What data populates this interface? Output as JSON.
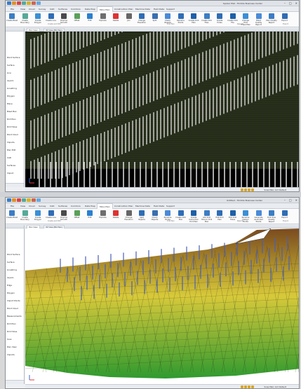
{
  "windows": [
    {
      "title": "Spoiler Plat - Trimble Business Center",
      "ribbon_tabs": [
        "File",
        "View",
        "Cloud",
        "Survey",
        "CAD",
        "Surfaces",
        "Corridors",
        "Data Prep",
        "Mine Plan",
        "Construction Plan",
        "Machine Data",
        "Field Data",
        "Support"
      ],
      "active_tab": "Mine Plan",
      "ribbon_buttons": [
        "Create Blast",
        "Create Boundary",
        "Create Polygon",
        "Create Line",
        "Polyline Smooth",
        "Offset",
        "Edit",
        "Explode",
        "Delete",
        "Join",
        "Change Elevation",
        "Split",
        "Check Objects",
        "Rename Points",
        "Create Drill Plan",
        "Create Drill Files",
        "Create Holes",
        "Create Drill File",
        "Change Hole Properties",
        "Blast Quality Report",
        "Plan Quality Report",
        "Export"
      ],
      "ribbon_groups": [
        "Create and Edit",
        "Drill Plan",
        "Reports",
        "Export"
      ],
      "sidebar_items": [
        "Point Surface",
        "Surface",
        "Line",
        "Layers",
        "Linestring",
        "Polygon",
        "Plane",
        "Blast Plan",
        "Drill Plan",
        "Drill Holes",
        "Point Cloud",
        "Imports",
        "Plan Edit",
        "CAD",
        "Surfaces",
        "Import"
      ],
      "doc_tabs": [
        "Plan View",
        "3D View (Blk Plan)"
      ],
      "status_text": "Snap  Main  Grd  Default"
    },
    {
      "title": "Untitled - Trimble Business Center",
      "ribbon_tabs": [
        "File",
        "View",
        "Cloud",
        "Survey",
        "CAD",
        "Surfaces",
        "Corridors",
        "Data Prep",
        "Mine Plan",
        "Construction Plan",
        "Machine Data",
        "Field Data",
        "Support"
      ],
      "active_tab": "Mine Plan",
      "ribbon_buttons": [
        "Create Blast",
        "Create Boundary",
        "Create Polygon",
        "Create Line",
        "Polyline Smooth",
        "Offset",
        "Edit",
        "Explode",
        "Delete",
        "Change Elevation",
        "Split Objects",
        "Check Objects",
        "Rename Points",
        "Create Drill Plan",
        "Create Instruction Drill Plan",
        "Add Drill Hole to Drill Plan",
        "Edit Drill Plan",
        "Edit Drill Holes",
        "Rename Design Points",
        "Generate As-Drilled Points",
        "Drill Hole Quality Report",
        "Export"
      ],
      "ribbon_groups": [
        "Create and Edit",
        "Drill Plan",
        "Reports",
        "Export"
      ],
      "sidebar_items": [
        "Point Surface",
        "Surface",
        "Linestring",
        "Layers",
        "Edge",
        "Polygon",
        "Import Points",
        "Point Cloud",
        "Measurements",
        "Drill Plan",
        "Drill Holes",
        "Scan",
        "Plan View",
        "Imports"
      ],
      "doc_tabs": [
        "Plan View",
        "3D View (Blk Plan)"
      ],
      "status_text": "Snap  Main  Grd  Default"
    }
  ],
  "colors": {
    "plan_background": "#232a18",
    "plan_lines": "#f2f2f2",
    "terrain_low": "#2f9a2f",
    "terrain_mid": "#d8c93a",
    "terrain_high": "#7a4a1e",
    "drill_hole": "#4a5fb3"
  }
}
